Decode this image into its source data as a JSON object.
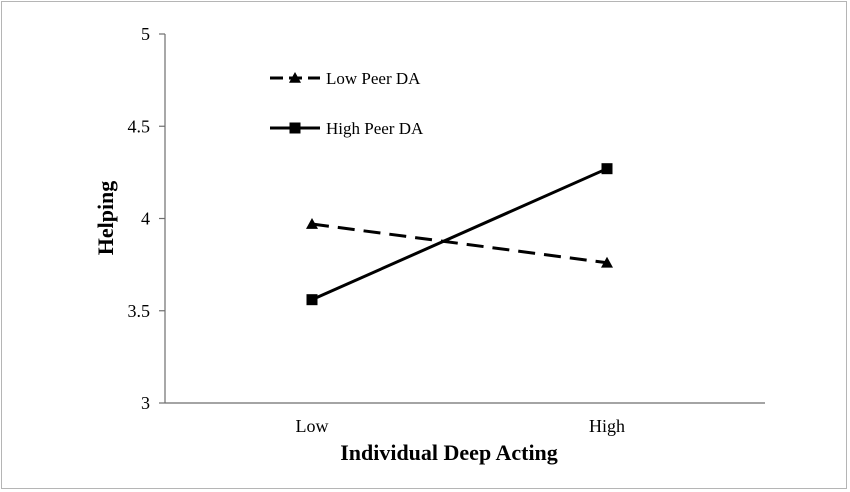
{
  "chart_data": {
    "type": "line",
    "xlabel": "Individual Deep Acting",
    "ylabel": "Helping",
    "categories": [
      "Low",
      "High"
    ],
    "ylim": [
      3,
      5
    ],
    "yticks": [
      "3",
      "3.5",
      "4",
      "4.5",
      "5"
    ],
    "grid": false,
    "legend_position": "top-left",
    "series": [
      {
        "name": "Low Peer DA",
        "values": [
          3.97,
          3.76
        ],
        "marker": "triangle",
        "line_style": "dashed",
        "color": "#000000"
      },
      {
        "name": "High Peer DA",
        "values": [
          3.56,
          4.27
        ],
        "marker": "square",
        "line_style": "solid",
        "color": "#000000"
      }
    ]
  }
}
